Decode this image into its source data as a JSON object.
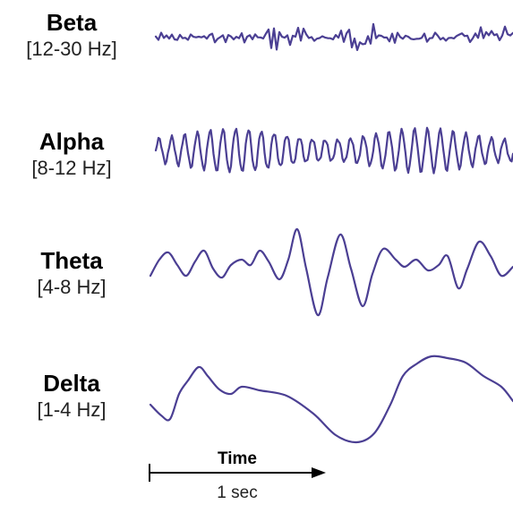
{
  "bands": [
    {
      "name": "Beta",
      "range": "[12-30 Hz]"
    },
    {
      "name": "Alpha",
      "range": "[8-12 Hz]"
    },
    {
      "name": "Theta",
      "range": "[4-8 Hz]"
    },
    {
      "name": "Delta",
      "range": "[1-4 Hz]"
    }
  ],
  "time_axis": {
    "label": "Time",
    "duration": "1 sec"
  },
  "colors": {
    "wave": "#4b3f93",
    "text": "#000000"
  }
}
